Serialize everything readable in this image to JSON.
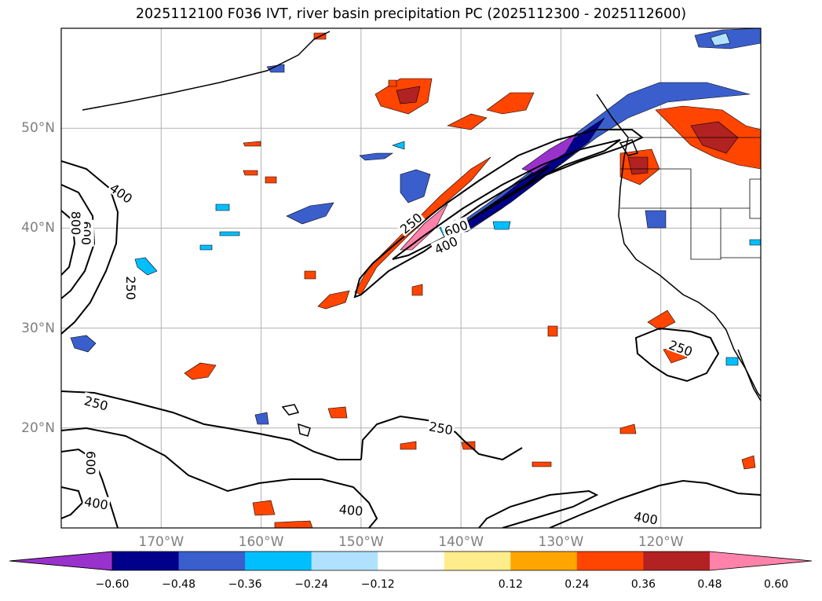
{
  "title": "2025112100 F036 IVT, river basin precipitation PC (2025112300 - 2025112600)",
  "map": {
    "lat_labels": [
      "50°N",
      "40°N",
      "30°N",
      "20°N"
    ],
    "lat_values": [
      50,
      40,
      30,
      20
    ],
    "lon_labels": [
      "170°W",
      "160°W",
      "150°W",
      "140°W",
      "130°W",
      "120°W"
    ],
    "lon_values": [
      -170,
      -160,
      -150,
      -140,
      -130,
      -120
    ],
    "extent": {
      "lon_min": -180,
      "lon_max": -110,
      "lat_min": 10,
      "lat_max": 60
    },
    "contour_labels": [
      {
        "text": "400",
        "lon": -174,
        "lat": 43.5,
        "rot": 35
      },
      {
        "text": "600",
        "lon": -177.5,
        "lat": 39.5,
        "rot": 90
      },
      {
        "text": "800",
        "lon": -178.5,
        "lat": 40.5,
        "rot": 90
      },
      {
        "text": "250",
        "lon": -173,
        "lat": 34,
        "rot": 90
      },
      {
        "text": "250",
        "lon": -176.5,
        "lat": 22.5,
        "rot": 15
      },
      {
        "text": "250",
        "lon": -142,
        "lat": 20,
        "rot": 10
      },
      {
        "text": "250",
        "lon": -145,
        "lat": 40.5,
        "rot": -40
      },
      {
        "text": "600",
        "lon": -140.5,
        "lat": 40,
        "rot": -20
      },
      {
        "text": "400",
        "lon": -141.5,
        "lat": 38.3,
        "rot": -25
      },
      {
        "text": "400",
        "lon": -176.5,
        "lat": 12.5,
        "rot": 10
      },
      {
        "text": "400",
        "lon": -151,
        "lat": 11.8,
        "rot": 5
      },
      {
        "text": "600",
        "lon": -177,
        "lat": 16.5,
        "rot": 90
      },
      {
        "text": "400",
        "lon": -121.5,
        "lat": 11,
        "rot": 10
      },
      {
        "text": "250",
        "lon": -118,
        "lat": 28,
        "rot": 20
      }
    ]
  },
  "colorbar": {
    "colors": [
      "#9932CC",
      "#00008B",
      "#3A5FCD",
      "#00BFFF",
      "#B0E2FF",
      "#FFFFFF",
      "#FFEC8B",
      "#FFA500",
      "#FF4500",
      "#B22222",
      "#FF82AB"
    ],
    "tick_labels": [
      "−0.60",
      "−0.48",
      "−0.36",
      "−0.24",
      "−0.12",
      "0.12",
      "0.24",
      "0.36",
      "0.48",
      "0.60"
    ],
    "tick_values": [
      -0.6,
      -0.48,
      -0.36,
      -0.24,
      -0.12,
      0.12,
      0.24,
      0.36,
      0.48,
      0.6
    ]
  }
}
